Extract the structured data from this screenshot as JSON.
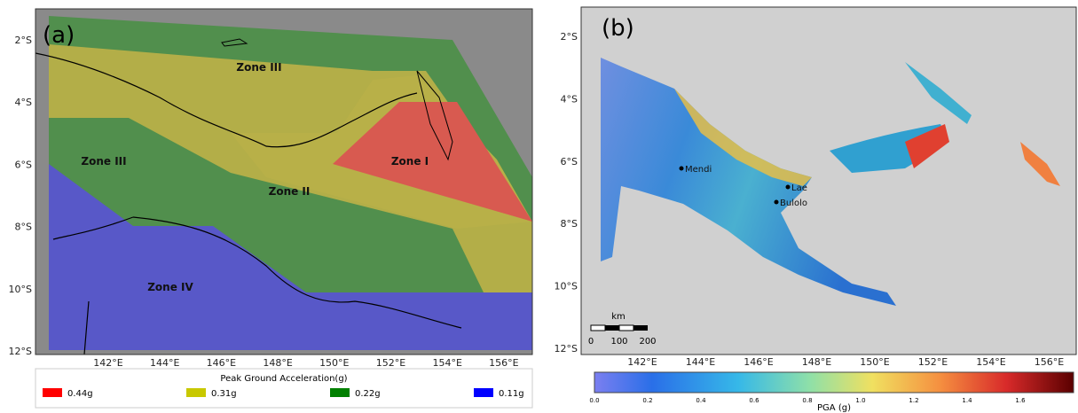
{
  "panel_a": {
    "label": "(a)",
    "lat_ticks": [
      "2°S",
      "4°S",
      "6°S",
      "8°S",
      "10°S",
      "12°S"
    ],
    "lon_ticks": [
      "142°E",
      "144°E",
      "146°E",
      "148°E",
      "150°E",
      "152°E",
      "154°E",
      "156°E"
    ],
    "zones": [
      "Zone III",
      "Zone III",
      "Zone II",
      "Zone I",
      "Zone IV"
    ],
    "legend": {
      "title": "Peak Ground Acceleration(g)",
      "items": [
        {
          "label": "0.44g",
          "color": "#ff0000"
        },
        {
          "label": "0.31g",
          "color": "#c8c800"
        },
        {
          "label": "0.22g",
          "color": "#008000"
        },
        {
          "label": "0.11g",
          "color": "#0000ff"
        }
      ]
    }
  },
  "panel_b": {
    "label": "(b)",
    "lat_ticks": [
      "2°S",
      "4°S",
      "6°S",
      "8°S",
      "10°S",
      "12°S"
    ],
    "lon_ticks": [
      "142°E",
      "144°E",
      "146°E",
      "148°E",
      "150°E",
      "152°E",
      "154°E",
      "156°E"
    ],
    "cities": [
      "Mendi",
      "Lae",
      "Bulolo"
    ],
    "scale_bar": {
      "unit": "km",
      "labels": [
        "0",
        "100",
        "200"
      ]
    },
    "colorbar": {
      "label": "PGA (g)",
      "ticks": [
        "0.0",
        "0.2",
        "0.4",
        "0.6",
        "0.8",
        "1.0",
        "1.2",
        "1.4",
        "1.6"
      ]
    }
  }
}
